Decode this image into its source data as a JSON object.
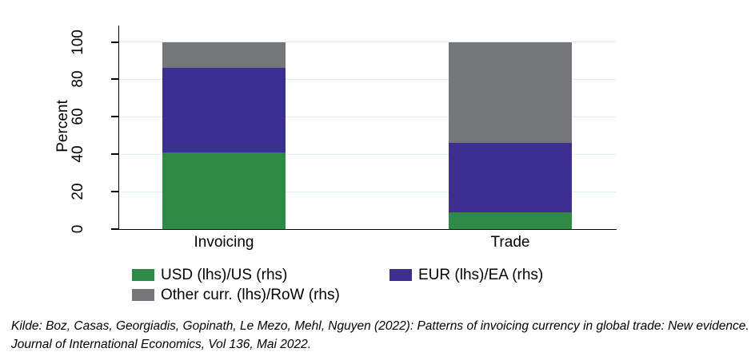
{
  "chart_data": {
    "type": "bar",
    "stacked": true,
    "title": "",
    "ylabel": "Percent",
    "categories": [
      "Invoicing",
      "Trade"
    ],
    "series": [
      {
        "id": "usd",
        "name": "USD (lhs)/US (rhs)",
        "color": "#2e8b45",
        "values": [
          41,
          9
        ]
      },
      {
        "id": "eur",
        "name": "EUR (lhs)/EA (rhs)",
        "color": "#3b2f92",
        "values": [
          45,
          37
        ]
      },
      {
        "id": "other",
        "name": "Other curr. (lhs)/RoW (rhs)",
        "color": "#757678",
        "values": [
          14,
          54
        ]
      }
    ],
    "ylim": [
      0,
      100
    ],
    "yticks": [
      0,
      20,
      40,
      60,
      80,
      100
    ],
    "grid": true,
    "gridline_color": "#e2eef5",
    "axis_color": "#000000",
    "legend_position": "below"
  },
  "source_note": "Kilde: Boz, Casas, Georgiadis, Gopinath, Le Mezo, Mehl, Nguyen (2022): Patterns of invoicing currency in global trade: New evidence. Journal of International Economics, Vol 136, Mai 2022."
}
